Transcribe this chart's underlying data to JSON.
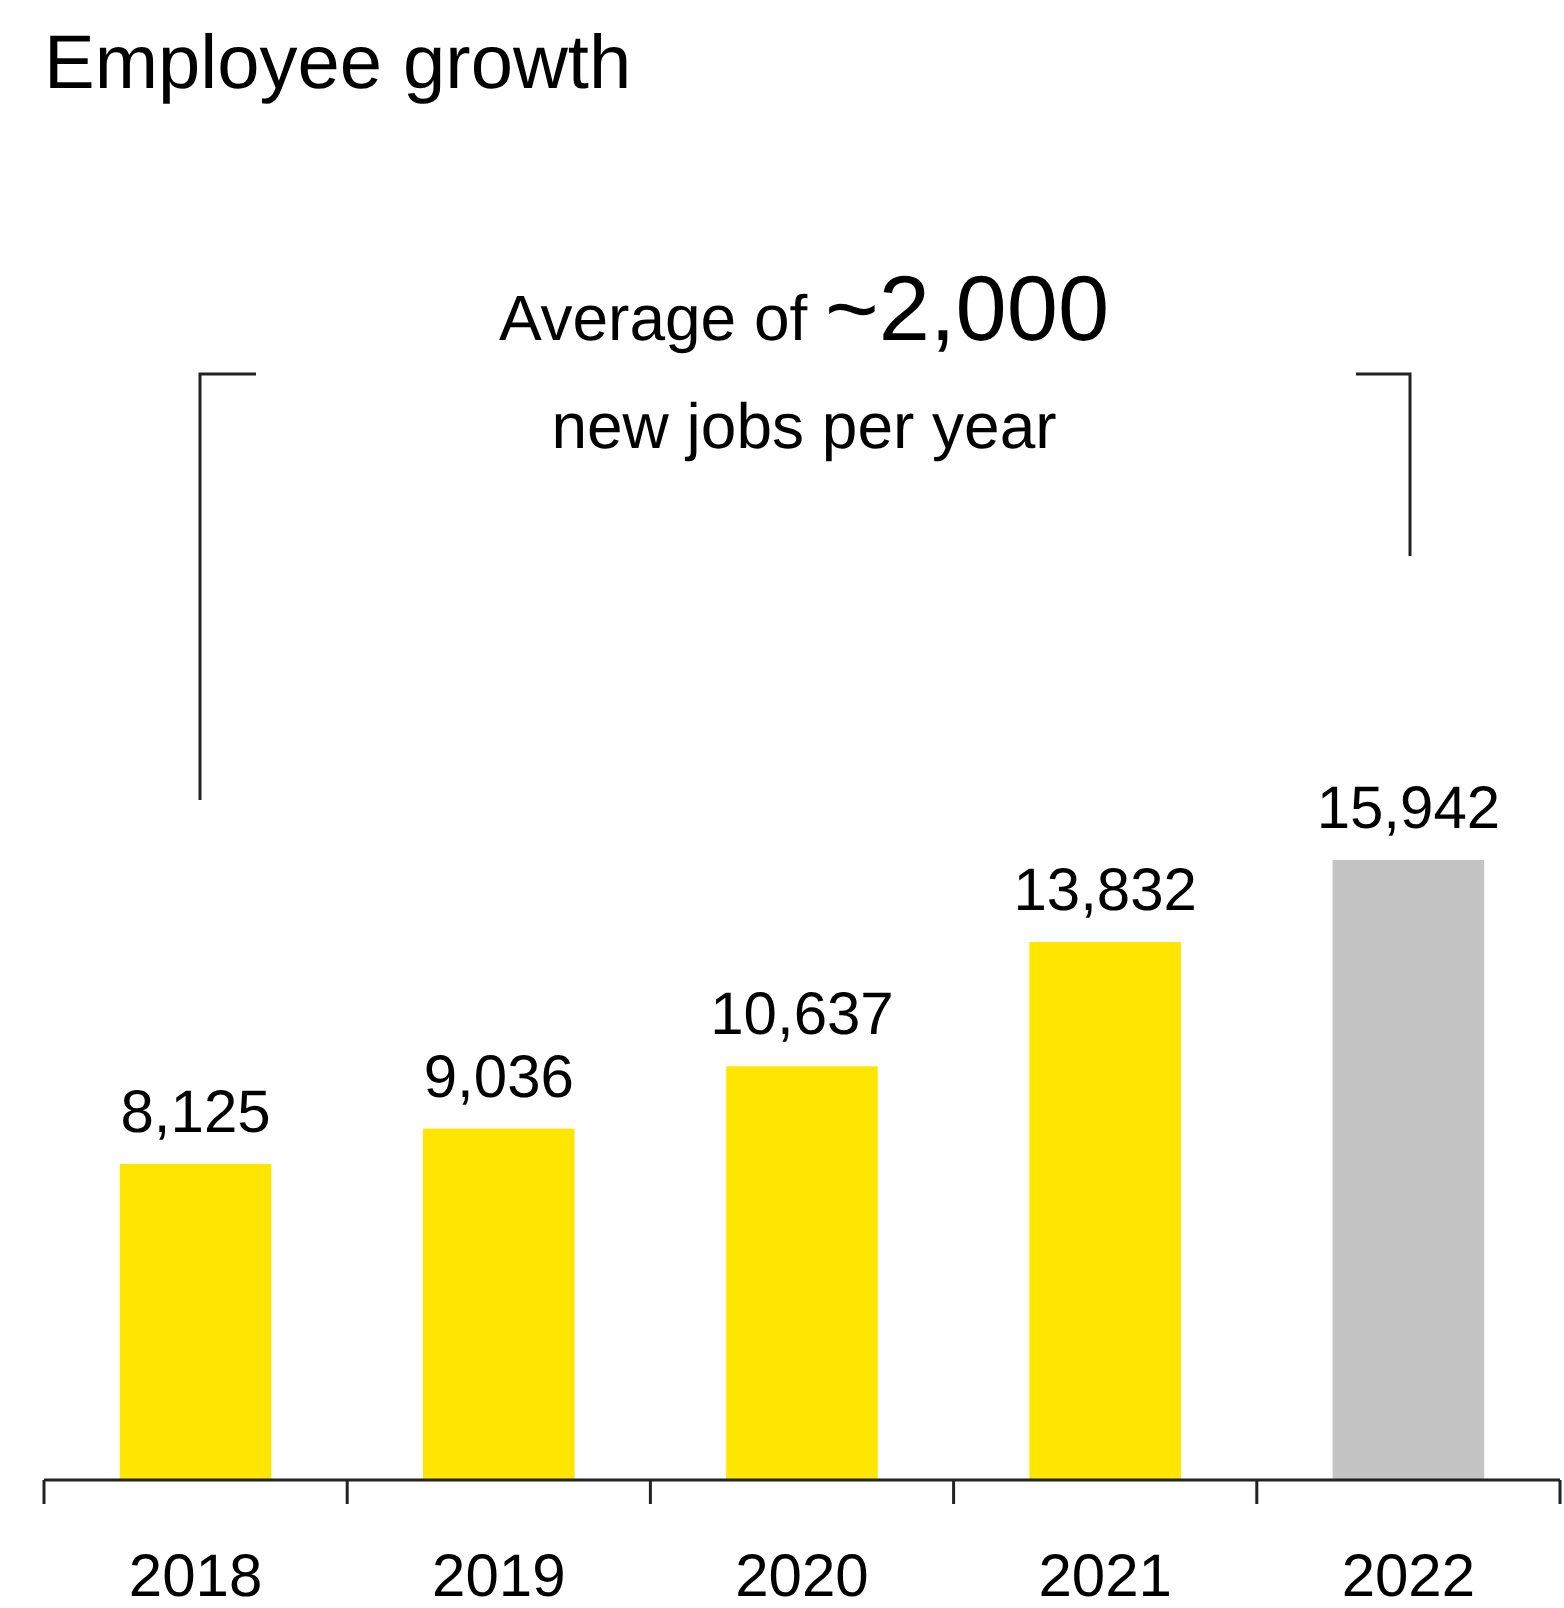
{
  "chart_data": {
    "type": "bar",
    "title": "Employee growth",
    "categories": [
      "2018",
      "2019",
      "2020",
      "2021",
      "2022"
    ],
    "values": [
      8125,
      9036,
      10637,
      13832,
      15942
    ],
    "colors": [
      "#ffe600",
      "#ffe600",
      "#ffe600",
      "#ffe600",
      "#c4c4c4"
    ],
    "value_labels": [
      "8,125",
      "9,036",
      "10,637",
      "13,832",
      "15,942"
    ],
    "annotations": [
      "Average of",
      "~2,000",
      "new jobs per year"
    ]
  }
}
